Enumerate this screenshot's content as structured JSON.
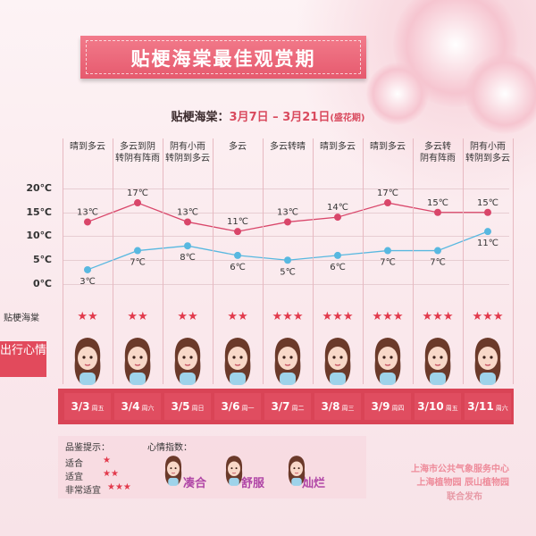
{
  "banner": {
    "title": "贴梗海棠最佳观赏期"
  },
  "subtitle": {
    "prefix": "贴梗海棠：",
    "range": "3月7日 – 3月21日",
    "note": "(盛花期)"
  },
  "days": [
    {
      "weather": "晴到多云",
      "high": 13,
      "low": 3,
      "stars": 2,
      "date": "3/3",
      "weekday": "周五"
    },
    {
      "weather": "多云到阴转阴有阵雨",
      "high": 17,
      "low": 7,
      "stars": 2,
      "date": "3/4",
      "weekday": "周六"
    },
    {
      "weather": "阴有小雨转阴到多云",
      "high": 13,
      "low": 8,
      "stars": 2,
      "date": "3/5",
      "weekday": "周日"
    },
    {
      "weather": "多云",
      "high": 11,
      "low": 6,
      "stars": 2,
      "date": "3/6",
      "weekday": "周一"
    },
    {
      "weather": "多云转晴",
      "high": 13,
      "low": 5,
      "stars": 3,
      "date": "3/7",
      "weekday": "周二"
    },
    {
      "weather": "晴到多云",
      "high": 14,
      "low": 6,
      "stars": 3,
      "date": "3/8",
      "weekday": "周三"
    },
    {
      "weather": "晴到多云",
      "high": 17,
      "low": 7,
      "stars": 3,
      "date": "3/9",
      "weekday": "周四"
    },
    {
      "weather": "多云转阴有阵雨",
      "high": 15,
      "low": 7,
      "stars": 3,
      "date": "3/10",
      "weekday": "周五"
    },
    {
      "weather": "阴有小雨转阴到多云",
      "high": 15,
      "low": 11,
      "stars": 3,
      "date": "3/11",
      "weekday": "周六"
    }
  ],
  "weather_lines": [
    [
      "晴到多云"
    ],
    [
      "多云到阴",
      "转阴有阵雨"
    ],
    [
      "阴有小雨",
      "转阴到多云"
    ],
    [
      "多云"
    ],
    [
      "多云转晴"
    ],
    [
      "晴到多云"
    ],
    [
      "晴到多云"
    ],
    [
      "多云转",
      "阴有阵雨"
    ],
    [
      "阴有小雨",
      "转阴到多云"
    ]
  ],
  "y_axis": {
    "ticks": [
      "20℃",
      "15℃",
      "10℃",
      "5℃",
      "0℃"
    ]
  },
  "rows": {
    "stars_label": "贴梗海棠",
    "mood_label": "出行心情"
  },
  "legend": {
    "rating_title": "品鉴提示：",
    "ratings": [
      {
        "label": "适合",
        "stars": "★"
      },
      {
        "label": "适宜",
        "stars": "★★"
      },
      {
        "label": "非常适宜",
        "stars": "★★★"
      }
    ],
    "mood_title": "心情指数：",
    "moods": [
      "凑合",
      "舒服",
      "灿烂"
    ]
  },
  "org": {
    "line1": "上海市公共气象服务中心",
    "line2": "上海植物园  辰山植物园",
    "line3": "联合发布"
  },
  "colors": {
    "high_line": "#d9466a",
    "low_line": "#58b8e0",
    "accent": "#d94456"
  }
}
